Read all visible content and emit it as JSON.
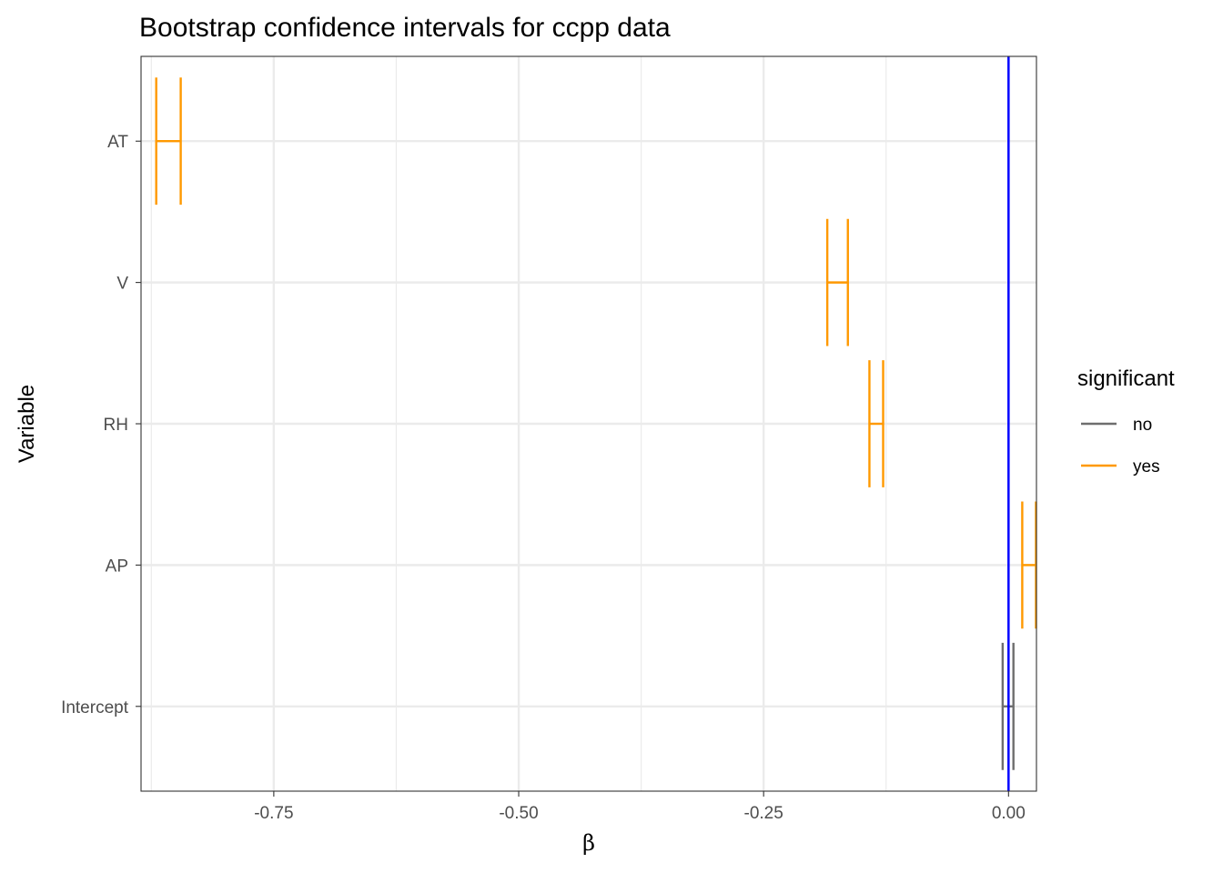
{
  "chart_data": {
    "type": "errorbar",
    "title": "Bootstrap confidence intervals for ccpp data",
    "xlabel": "β",
    "ylabel": "Variable",
    "xlim": [
      -0.8855,
      0.0285
    ],
    "x_ticks": [
      {
        "value": -0.75,
        "label": "-0.75"
      },
      {
        "value": -0.5,
        "label": "-0.50"
      },
      {
        "value": -0.25,
        "label": "-0.25"
      },
      {
        "value": 0.0,
        "label": "0.00"
      }
    ],
    "x_minor_ticks": [
      -0.875,
      -0.625,
      -0.375,
      -0.125
    ],
    "categories": [
      "AT",
      "V",
      "RH",
      "AP",
      "Intercept"
    ],
    "intervals": [
      {
        "variable": "AT",
        "lower": -0.87,
        "upper": -0.845,
        "significant": "yes"
      },
      {
        "variable": "V",
        "lower": -0.185,
        "upper": -0.164,
        "significant": "yes"
      },
      {
        "variable": "RH",
        "lower": -0.142,
        "upper": -0.128,
        "significant": "yes"
      },
      {
        "variable": "AP",
        "lower": 0.014,
        "upper": 0.028,
        "significant": "yes"
      },
      {
        "variable": "Intercept",
        "lower": -0.006,
        "upper": 0.005,
        "significant": "no"
      }
    ],
    "reference_line": {
      "x": 0.0,
      "color": "#0000ff"
    },
    "legend": {
      "title": "significant",
      "position": "right",
      "entries": [
        {
          "label": "no",
          "color": "#6e6e6e"
        },
        {
          "label": "yes",
          "color": "#ff9900"
        }
      ]
    },
    "grid": true
  }
}
